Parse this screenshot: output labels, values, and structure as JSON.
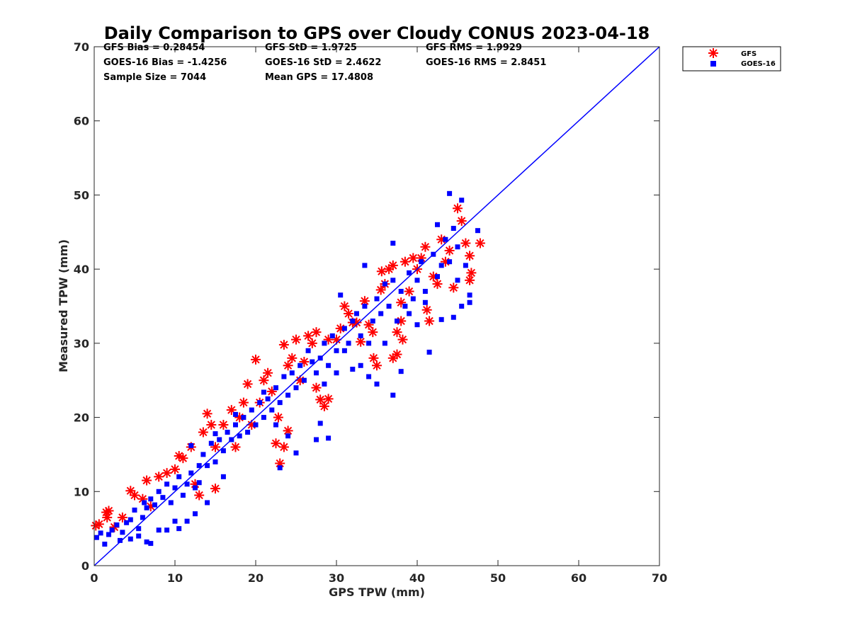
{
  "chart_data": {
    "type": "scatter",
    "title": "Daily Comparison to GPS over Cloudy CONUS 2023-04-18",
    "xlabel": "GPS TPW (mm)",
    "ylabel": "Measured TPW (mm)",
    "xlim": [
      0,
      70
    ],
    "ylim": [
      0,
      70
    ],
    "x_ticks": [
      "0",
      "10",
      "20",
      "30",
      "40",
      "50",
      "60",
      "70"
    ],
    "y_ticks": [
      "0",
      "10",
      "20",
      "30",
      "40",
      "50",
      "60",
      "70"
    ],
    "grid": false,
    "legend_position": "outside top-right",
    "stats": [
      [
        "GFS Bias = 0.28454",
        "GFS StD = 1.9725",
        "GFS RMS = 1.9929"
      ],
      [
        "GOES-16 Bias = -1.4256",
        "GOES-16 StD = 2.4622",
        "GOES-16 RMS = 2.8451"
      ],
      [
        "Sample Size = 7044",
        "Mean GPS = 17.4808",
        ""
      ]
    ],
    "reference_line": {
      "x": [
        0,
        70
      ],
      "y": [
        0,
        70
      ],
      "color": "#0000ff"
    },
    "series": [
      {
        "name": "GFS",
        "marker": "asterisk",
        "color": "#ff0000",
        "points": [
          [
            0.2,
            5.4
          ],
          [
            0.6,
            5.6
          ],
          [
            1.5,
            7.2
          ],
          [
            1.6,
            6.5
          ],
          [
            1.8,
            7.4
          ],
          [
            2.5,
            5.2
          ],
          [
            3.5,
            6.5
          ],
          [
            4.5,
            10.1
          ],
          [
            5,
            9.5
          ],
          [
            6,
            9
          ],
          [
            6.5,
            11.5
          ],
          [
            7,
            8
          ],
          [
            8,
            12
          ],
          [
            9,
            12.5
          ],
          [
            10,
            13
          ],
          [
            10.5,
            14.8
          ],
          [
            11,
            14.5
          ],
          [
            12,
            16
          ],
          [
            12.5,
            11
          ],
          [
            13,
            9.5
          ],
          [
            13.5,
            18
          ],
          [
            14,
            20.5
          ],
          [
            14.5,
            19
          ],
          [
            15,
            16
          ],
          [
            15,
            10.4
          ],
          [
            16,
            19
          ],
          [
            17,
            21
          ],
          [
            17.5,
            16
          ],
          [
            18,
            20
          ],
          [
            18.5,
            22
          ],
          [
            19,
            24.5
          ],
          [
            19.5,
            19
          ],
          [
            20,
            27.8
          ],
          [
            20.5,
            22
          ],
          [
            21,
            25
          ],
          [
            21.5,
            26
          ],
          [
            22,
            23.5
          ],
          [
            22.5,
            16.5
          ],
          [
            22.8,
            20
          ],
          [
            23,
            13.8
          ],
          [
            23.5,
            16
          ],
          [
            24,
            18.2
          ],
          [
            23.5,
            29.8
          ],
          [
            24,
            27
          ],
          [
            24.5,
            28
          ],
          [
            25,
            30.5
          ],
          [
            25.5,
            25
          ],
          [
            26,
            27.5
          ],
          [
            26.5,
            31
          ],
          [
            27,
            30
          ],
          [
            27.5,
            31.5
          ],
          [
            27.5,
            24
          ],
          [
            28,
            22.4
          ],
          [
            28.5,
            21.5
          ],
          [
            29,
            22.5
          ],
          [
            29,
            30.5
          ],
          [
            30,
            30.5
          ],
          [
            30.5,
            32
          ],
          [
            31,
            35
          ],
          [
            31.5,
            34
          ],
          [
            32,
            32.8
          ],
          [
            32.5,
            32.8
          ],
          [
            33,
            30.2
          ],
          [
            33.5,
            35.7
          ],
          [
            34,
            32.5
          ],
          [
            34.5,
            31.5
          ],
          [
            34.6,
            28
          ],
          [
            35,
            27
          ],
          [
            35.5,
            37.2
          ],
          [
            35.6,
            39.7
          ],
          [
            36,
            38
          ],
          [
            36.5,
            40
          ],
          [
            37,
            40.5
          ],
          [
            37,
            28
          ],
          [
            37.5,
            28.5
          ],
          [
            37.5,
            31.5
          ],
          [
            38,
            35.5
          ],
          [
            38,
            33
          ],
          [
            38.2,
            30.5
          ],
          [
            38.5,
            41
          ],
          [
            39,
            37
          ],
          [
            39.5,
            41.5
          ],
          [
            40,
            40
          ],
          [
            40.5,
            41.5
          ],
          [
            41,
            43
          ],
          [
            41.2,
            34.5
          ],
          [
            41.5,
            33
          ],
          [
            42,
            39
          ],
          [
            42.5,
            38
          ],
          [
            43,
            44
          ],
          [
            43.5,
            41
          ],
          [
            44,
            42.5
          ],
          [
            44.5,
            37.5
          ],
          [
            45,
            48.2
          ],
          [
            45.5,
            46.5
          ],
          [
            46,
            43.5
          ],
          [
            46.5,
            41.8
          ],
          [
            46.5,
            38.5
          ],
          [
            46.7,
            39.5
          ],
          [
            47.8,
            43.5
          ]
        ]
      },
      {
        "name": "GOES-16",
        "marker": "square",
        "color": "#0000ff",
        "points": [
          [
            0.3,
            3.8
          ],
          [
            0.8,
            4.4
          ],
          [
            1.3,
            2.9
          ],
          [
            1.8,
            4.2
          ],
          [
            2.2,
            4.8
          ],
          [
            2.8,
            5.5
          ],
          [
            3.2,
            3.4
          ],
          [
            3.5,
            4.5
          ],
          [
            4,
            5.8
          ],
          [
            4.5,
            6.2
          ],
          [
            4.5,
            3.6
          ],
          [
            5,
            7.5
          ],
          [
            5.5,
            5
          ],
          [
            5.5,
            4
          ],
          [
            6,
            6.5
          ],
          [
            6.2,
            8.5
          ],
          [
            6.5,
            7.8
          ],
          [
            6.5,
            3.2
          ],
          [
            7,
            9
          ],
          [
            7,
            3
          ],
          [
            7.5,
            8.2
          ],
          [
            8,
            10
          ],
          [
            8,
            4.8
          ],
          [
            8.5,
            9.2
          ],
          [
            9,
            11
          ],
          [
            9,
            4.8
          ],
          [
            9.5,
            8.5
          ],
          [
            10,
            10.5
          ],
          [
            10,
            6
          ],
          [
            10.5,
            12
          ],
          [
            10.5,
            5
          ],
          [
            11,
            9.5
          ],
          [
            11.5,
            11
          ],
          [
            11.5,
            6
          ],
          [
            12,
            12.5
          ],
          [
            12,
            16.2
          ],
          [
            12.5,
            10.5
          ],
          [
            12.5,
            7
          ],
          [
            13,
            13.5
          ],
          [
            13,
            11.2
          ],
          [
            13.5,
            15
          ],
          [
            14,
            13.5
          ],
          [
            14,
            8.5
          ],
          [
            14.5,
            16.5
          ],
          [
            15,
            14
          ],
          [
            15,
            17.8
          ],
          [
            15.5,
            17
          ],
          [
            16,
            15.5
          ],
          [
            16,
            12
          ],
          [
            16.5,
            18
          ],
          [
            17,
            17
          ],
          [
            17.5,
            19
          ],
          [
            17.5,
            20.4
          ],
          [
            18,
            17.5
          ],
          [
            18.5,
            20
          ],
          [
            19,
            18
          ],
          [
            19.5,
            21
          ],
          [
            20,
            19
          ],
          [
            20.5,
            22
          ],
          [
            21,
            20
          ],
          [
            21,
            23.4
          ],
          [
            21.5,
            22.5
          ],
          [
            22,
            21
          ],
          [
            22.5,
            24
          ],
          [
            22.5,
            19
          ],
          [
            23,
            22
          ],
          [
            23,
            13.2
          ],
          [
            23.5,
            25.5
          ],
          [
            24,
            17.5
          ],
          [
            24,
            23
          ],
          [
            24.5,
            26
          ],
          [
            25,
            24
          ],
          [
            25,
            15.2
          ],
          [
            25.5,
            27
          ],
          [
            26,
            25
          ],
          [
            26.5,
            29
          ],
          [
            27,
            27.5
          ],
          [
            27.5,
            26
          ],
          [
            27.5,
            17
          ],
          [
            28,
            28
          ],
          [
            28,
            19.2
          ],
          [
            28.5,
            30
          ],
          [
            28.5,
            24.5
          ],
          [
            29,
            27
          ],
          [
            29,
            17.2
          ],
          [
            29.5,
            31
          ],
          [
            30,
            29
          ],
          [
            30,
            26
          ],
          [
            30.5,
            36.5
          ],
          [
            31,
            32
          ],
          [
            31,
            29
          ],
          [
            31.5,
            30
          ],
          [
            32,
            33
          ],
          [
            32,
            26.5
          ],
          [
            32.5,
            34
          ],
          [
            33,
            31
          ],
          [
            33,
            27
          ],
          [
            33.5,
            35
          ],
          [
            33.5,
            40.5
          ],
          [
            34,
            30
          ],
          [
            34,
            25.5
          ],
          [
            34.5,
            33
          ],
          [
            35,
            36
          ],
          [
            35,
            24.5
          ],
          [
            35.5,
            34
          ],
          [
            36,
            38
          ],
          [
            36,
            30
          ],
          [
            36.5,
            35
          ],
          [
            37,
            38.5
          ],
          [
            37,
            43.5
          ],
          [
            37,
            23
          ],
          [
            37.5,
            33
          ],
          [
            38,
            37
          ],
          [
            38,
            26.2
          ],
          [
            38.5,
            35
          ],
          [
            39,
            39.5
          ],
          [
            39,
            34
          ],
          [
            39.5,
            36
          ],
          [
            40,
            38.5
          ],
          [
            40,
            32.5
          ],
          [
            40.5,
            41
          ],
          [
            41,
            37
          ],
          [
            41,
            35.5
          ],
          [
            41.5,
            28.8
          ],
          [
            42,
            42
          ],
          [
            42.5,
            39
          ],
          [
            42.5,
            46
          ],
          [
            43,
            40.5
          ],
          [
            43,
            33.2
          ],
          [
            43.5,
            44
          ],
          [
            44,
            41
          ],
          [
            44,
            50.2
          ],
          [
            44.5,
            45.5
          ],
          [
            44.5,
            33.5
          ],
          [
            45,
            43
          ],
          [
            45,
            38.5
          ],
          [
            45.5,
            49.3
          ],
          [
            45.5,
            35
          ],
          [
            46,
            40.5
          ],
          [
            46.5,
            36.5
          ],
          [
            46.5,
            35.5
          ],
          [
            47.5,
            45.2
          ]
        ]
      }
    ]
  }
}
